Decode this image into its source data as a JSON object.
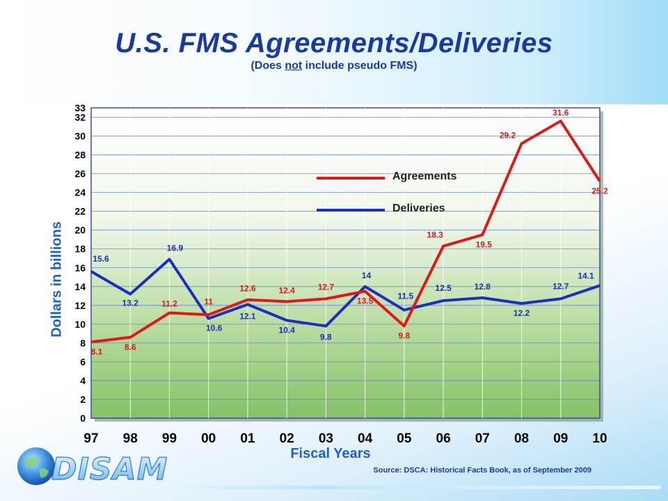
{
  "header": {
    "title": "U.S. FMS Agreements/Deliveries",
    "subtitle_pre": "(Does ",
    "subtitle_underlined": "not",
    "subtitle_post": " include pseudo FMS)"
  },
  "footer": {
    "source": "Source: DSCA: Historical Facts Book, as of September 2009",
    "logo_text": "DISAM"
  },
  "chart_data": {
    "type": "line",
    "title": "U.S. FMS Agreements/Deliveries",
    "xlabel": "Fiscal Years",
    "ylabel": "Dollars in billions",
    "categories": [
      "97",
      "98",
      "99",
      "00",
      "01",
      "02",
      "03",
      "04",
      "05",
      "06",
      "07",
      "08",
      "09",
      "10"
    ],
    "ylim": [
      0,
      33
    ],
    "yticks": [
      0,
      2,
      4,
      6,
      8,
      10,
      12,
      14,
      16,
      18,
      20,
      22,
      24,
      26,
      28,
      30,
      32,
      33
    ],
    "grid": true,
    "legend_position": "center",
    "series": [
      {
        "name": "Agreements",
        "color": "#dd1a1a",
        "values": [
          8.1,
          8.6,
          11.2,
          11,
          12.6,
          12.4,
          12.7,
          13.5,
          9.8,
          18.3,
          19.5,
          29.2,
          31.6,
          25.2
        ],
        "labels": [
          "8.1",
          "8.6",
          "11.2",
          "11",
          "12.6",
          "12.4",
          "12.7",
          "13.5",
          "9.8",
          "18.3",
          "19.5",
          "29.2",
          "31.6",
          "25.2"
        ]
      },
      {
        "name": "Deliveries",
        "color": "#1a2fc0",
        "values": [
          15.6,
          13.2,
          16.9,
          10.6,
          12.1,
          10.4,
          9.8,
          14,
          11.5,
          12.5,
          12.8,
          12.2,
          12.7,
          14.1
        ],
        "labels": [
          "15.6",
          "13.2",
          "16.9",
          "10.6",
          "12.1",
          "10.4",
          "9.8",
          "14",
          "11.5",
          "12.5",
          "12.8",
          "12.2",
          "12.7",
          "14.1"
        ]
      }
    ]
  }
}
